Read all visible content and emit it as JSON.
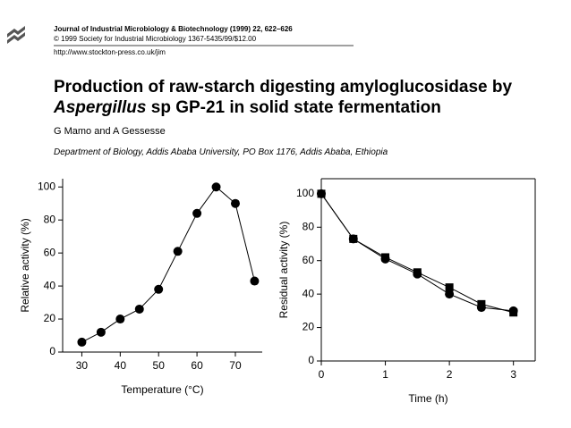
{
  "header": {
    "journal": "Journal of Industrial Microbiology & Biotechnology (1999) 22, 622–626",
    "copyright": "© 1999 Society for Industrial Microbiology 1367-5435/99/$12.00",
    "url": "http://www.stockton-press.co.uk/jim"
  },
  "title": {
    "line1": "Production of raw-starch digesting amyloglucosidase by",
    "genus": "Aspergillus",
    "rest": " sp GP-21 in solid state fermentation"
  },
  "authors": "G Mamo and A Gessesse",
  "affiliation": "Department of Biology, Addis Ababa University, PO Box 1176, Addis Ababa, Ethiopia",
  "chart_data": [
    {
      "type": "line",
      "xlabel": "Temperature (°C)",
      "ylabel": "Relative activity (%)",
      "x": [
        30,
        35,
        40,
        45,
        50,
        55,
        60,
        65,
        70,
        75
      ],
      "series": [
        {
          "color": "#000000",
          "marker": "circle",
          "values": [
            6,
            12,
            20,
            26,
            38,
            61,
            84,
            100,
            90,
            43
          ]
        }
      ],
      "xlim": [
        25,
        77
      ],
      "ylim": [
        0,
        105
      ],
      "xticks": [
        30,
        40,
        50,
        60,
        70
      ],
      "yticks": [
        0,
        20,
        40,
        60,
        80,
        100
      ]
    },
    {
      "type": "line",
      "xlabel": "Time (h)",
      "ylabel": "Residual activity (%)",
      "x": [
        0,
        0.5,
        1,
        1.5,
        2,
        2.5,
        3
      ],
      "series": [
        {
          "color": "#000000",
          "marker": "square",
          "values": [
            100,
            73,
            62,
            53,
            44,
            34,
            29
          ]
        },
        {
          "color": "#000000",
          "marker": "circle",
          "values": [
            100,
            73,
            61,
            52,
            40,
            32,
            30
          ]
        }
      ],
      "xlim": [
        0,
        3.34
      ],
      "ylim": [
        0,
        109
      ],
      "xticks": [
        0,
        1,
        2,
        3
      ],
      "yticks": [
        0,
        20,
        40,
        60,
        80,
        100
      ]
    }
  ]
}
